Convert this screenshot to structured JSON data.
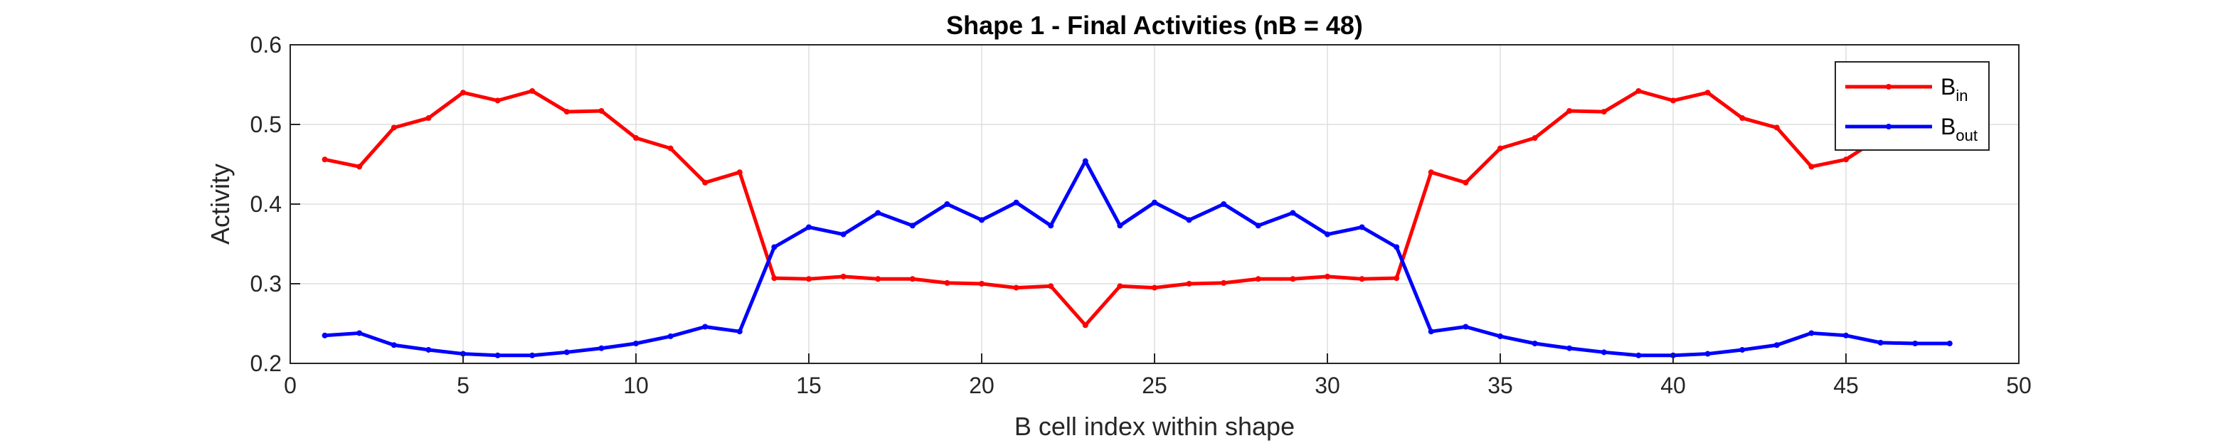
{
  "chart_data": {
    "type": "line",
    "title": "Shape 1 - Final Activities (nB = 48)",
    "xlabel": "B cell index within shape",
    "ylabel": "Activity",
    "xlim": [
      0,
      50
    ],
    "ylim": [
      0.2,
      0.6
    ],
    "xticks": [
      0,
      5,
      10,
      15,
      20,
      25,
      30,
      35,
      40,
      45,
      50
    ],
    "yticks": [
      0.2,
      0.3,
      0.4,
      0.5,
      0.6
    ],
    "xtick_labels": [
      "0",
      "5",
      "10",
      "15",
      "20",
      "25",
      "30",
      "35",
      "40",
      "45",
      "50"
    ],
    "ytick_labels": [
      "0.2",
      "0.3",
      "0.4",
      "0.5",
      "0.6"
    ],
    "grid": true,
    "legend_position": "top-right",
    "x": [
      1,
      2,
      3,
      4,
      5,
      6,
      7,
      8,
      9,
      10,
      11,
      12,
      13,
      14,
      15,
      16,
      17,
      18,
      19,
      20,
      21,
      22,
      23,
      24,
      25,
      26,
      27,
      28,
      29,
      30,
      31,
      32,
      33,
      34,
      35,
      36,
      37,
      38,
      39,
      40,
      41,
      42,
      43,
      44,
      45,
      46,
      47,
      48
    ],
    "series": [
      {
        "name": "B_in",
        "legend_main": "B",
        "legend_sub": "in",
        "color": "#ff0000",
        "values": [
          0.456,
          0.447,
          0.496,
          0.508,
          0.54,
          0.53,
          0.542,
          0.516,
          0.517,
          0.483,
          0.47,
          0.427,
          0.44,
          0.307,
          0.306,
          0.309,
          0.306,
          0.306,
          0.301,
          0.3,
          0.295,
          0.297,
          0.248,
          0.297,
          0.295,
          0.3,
          0.301,
          0.306,
          0.306,
          0.309,
          0.306,
          0.307,
          0.44,
          0.427,
          0.47,
          0.483,
          0.517,
          0.516,
          0.542,
          0.53,
          0.54,
          0.508,
          0.496,
          0.447,
          0.456,
          0.484,
          0.495,
          0.496
        ]
      },
      {
        "name": "B_out",
        "legend_main": "B",
        "legend_sub": "out",
        "color": "#0000ff",
        "values": [
          0.235,
          0.238,
          0.223,
          0.217,
          0.212,
          0.21,
          0.21,
          0.214,
          0.219,
          0.225,
          0.234,
          0.246,
          0.24,
          0.346,
          0.371,
          0.362,
          0.389,
          0.373,
          0.4,
          0.38,
          0.402,
          0.373,
          0.454,
          0.373,
          0.402,
          0.38,
          0.4,
          0.373,
          0.389,
          0.362,
          0.371,
          0.346,
          0.24,
          0.246,
          0.234,
          0.225,
          0.219,
          0.214,
          0.21,
          0.21,
          0.212,
          0.217,
          0.223,
          0.238,
          0.235,
          0.226,
          0.225,
          0.225
        ]
      }
    ]
  }
}
